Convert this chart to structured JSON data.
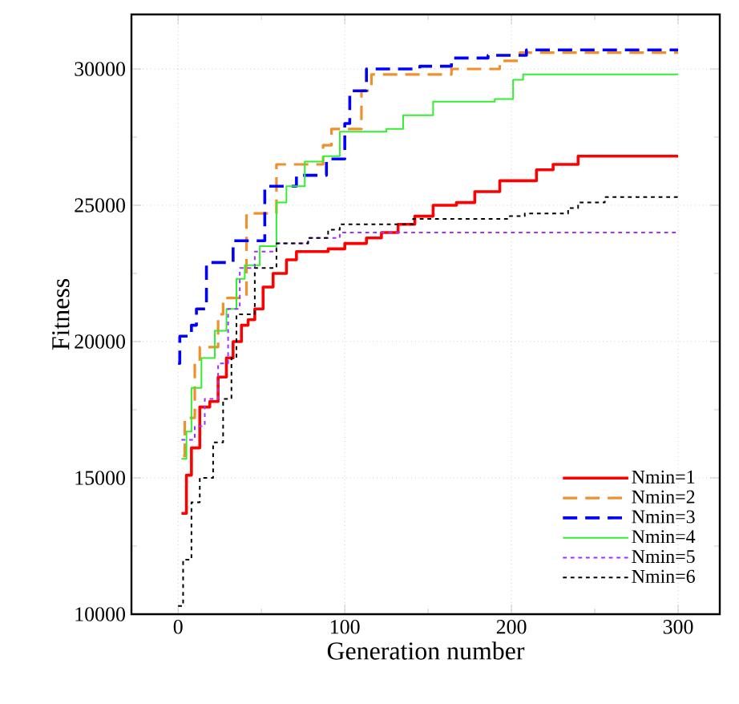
{
  "chart_data": {
    "type": "step",
    "xlabel": "Generation number",
    "ylabel": "Fitness",
    "xlim": [
      -28,
      325
    ],
    "ylim": [
      10000,
      32000
    ],
    "xticks": [
      0,
      {
        "value": 50,
        "label": null
      },
      100,
      {
        "value": 150,
        "label": null
      },
      200,
      {
        "value": 250,
        "label": null
      },
      300
    ],
    "yticks": [
      10000,
      {
        "value": 12500,
        "label": null
      },
      15000,
      {
        "value": 17500,
        "label": null
      },
      20000,
      {
        "value": 22500,
        "label": null
      },
      25000,
      {
        "value": 27500,
        "label": null
      },
      30000
    ],
    "grid": true,
    "legend": "bottom right",
    "series": [
      {
        "name": "Nmin=1",
        "color": "#ff0000",
        "line_style": "solid",
        "x": [
          2,
          5,
          8,
          13,
          19,
          24,
          29,
          33,
          38,
          42,
          46,
          51,
          57,
          65,
          71,
          90,
          100,
          113,
          122,
          132,
          142,
          153,
          167,
          178,
          193,
          215,
          225,
          240,
          275,
          300
        ],
        "values": [
          13700,
          15100,
          16100,
          17600,
          17800,
          18700,
          19400,
          20000,
          20600,
          20800,
          21200,
          22000,
          22500,
          23000,
          23300,
          23400,
          23600,
          23800,
          24000,
          24300,
          24600,
          25000,
          25100,
          25500,
          25900,
          26300,
          26500,
          26800,
          26800,
          26800
        ]
      },
      {
        "name": "Nmin=2",
        "color": "#f28e2b",
        "line_style": "dashed",
        "x": [
          3,
          4,
          10,
          13,
          24,
          27,
          41,
          59,
          87,
          92,
          110,
          116,
          148,
          164,
          193,
          205,
          300
        ],
        "values": [
          15800,
          17200,
          19200,
          19800,
          21000,
          21600,
          24700,
          26500,
          27200,
          27800,
          29200,
          29800,
          29800,
          30000,
          30300,
          30600,
          30600
        ]
      },
      {
        "name": "Nmin=3",
        "color": "#0000ff",
        "line_style": "dashed",
        "x": [
          0,
          1,
          8,
          11,
          17,
          33,
          52,
          71,
          89,
          100,
          103,
          113,
          141,
          145,
          164,
          186,
          209,
          300
        ],
        "values": [
          19200,
          20200,
          20600,
          21200,
          22900,
          23700,
          25700,
          26100,
          26700,
          28000,
          29200,
          30000,
          30000,
          30100,
          30400,
          30500,
          30700,
          30700
        ]
      },
      {
        "name": "Nmin=4",
        "color": "#33ee33",
        "line_style": "solid",
        "x": [
          2,
          5,
          8,
          14,
          22,
          29,
          35,
          40,
          49,
          59,
          65,
          76,
          87,
          97,
          125,
          135,
          153,
          190,
          201,
          207,
          300
        ],
        "values": [
          15700,
          16700,
          18300,
          19400,
          20400,
          21200,
          22300,
          22800,
          23500,
          25100,
          25700,
          26600,
          26800,
          27700,
          27800,
          28300,
          28800,
          28900,
          29600,
          29800,
          29800
        ]
      },
      {
        "name": "Nmin=5",
        "color": "#9933ff",
        "line_style": "dotted",
        "x": [
          2,
          10,
          16,
          24,
          30,
          37,
          46,
          59,
          78,
          97,
          300
        ],
        "values": [
          16400,
          16900,
          17900,
          19200,
          21200,
          22700,
          23300,
          23600,
          23800,
          24000,
          24000
        ]
      },
      {
        "name": "Nmin=6",
        "color": "#000000",
        "line_style": "dotted",
        "x": [
          0,
          3,
          8,
          13,
          21,
          27,
          32,
          35,
          46,
          59,
          78,
          90,
          97,
          141,
          199,
          208,
          234,
          240,
          256,
          300
        ],
        "values": [
          10300,
          12000,
          14100,
          15000,
          16300,
          17900,
          19400,
          21000,
          22700,
          23600,
          23800,
          24100,
          24300,
          24500,
          24600,
          24700,
          24900,
          25100,
          25300,
          25300
        ]
      }
    ]
  }
}
